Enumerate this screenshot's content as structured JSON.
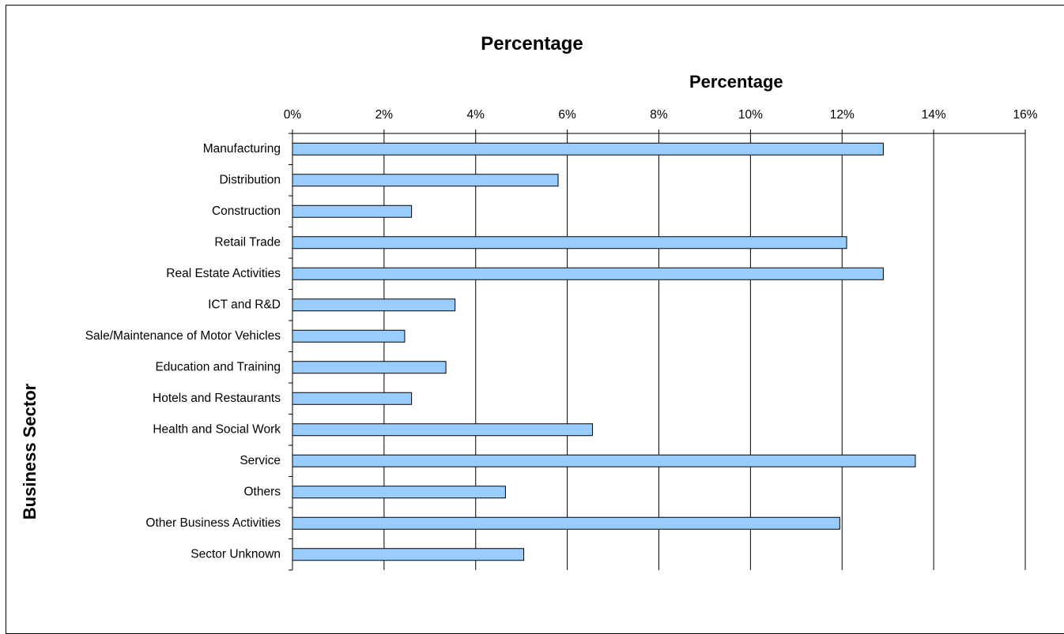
{
  "chart_data": {
    "type": "bar",
    "orientation": "horizontal",
    "title": "Percentage",
    "xlabel": "Percentage",
    "ylabel": "Business Sector",
    "xlim": [
      0,
      16
    ],
    "xticks": [
      "0%",
      "2%",
      "4%",
      "6%",
      "8%",
      "10%",
      "12%",
      "14%",
      "16%"
    ],
    "x_axis_position": "top",
    "grid": "vertical",
    "legend": "none",
    "bar_color": "#99ccff",
    "categories": [
      "Manufacturing",
      "Distribution",
      "Construction",
      "Retail Trade",
      "Real Estate Activities",
      "ICT and R&D",
      "Sale/Maintenance of Motor Vehicles",
      "Education and Training",
      "Hotels and Restaurants",
      "Health and Social Work",
      "Service",
      "Others",
      "Other Business Activities",
      "Sector Unknown"
    ],
    "values": [
      12.9,
      5.8,
      2.6,
      12.1,
      12.9,
      3.55,
      2.45,
      3.35,
      2.6,
      6.55,
      13.6,
      4.65,
      11.95,
      5.05
    ]
  }
}
